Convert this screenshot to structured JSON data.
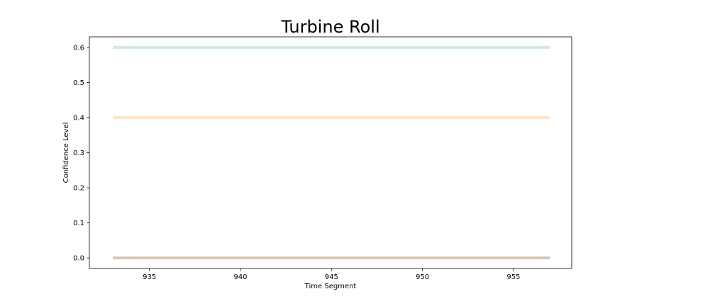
{
  "chart_data": {
    "type": "line",
    "title": "Turbine Roll",
    "xlabel": "Time Segment",
    "ylabel": "Confidence Level",
    "xlim": [
      931.7,
      958.2
    ],
    "ylim": [
      -0.03,
      0.63
    ],
    "xticks": [
      935,
      940,
      945,
      950,
      955
    ],
    "yticks": [
      0.0,
      0.1,
      0.2,
      0.3,
      0.4,
      0.5,
      0.6
    ],
    "ytick_labels": [
      "0.0",
      "0.1",
      "0.2",
      "0.3",
      "0.4",
      "0.5",
      "0.6"
    ],
    "grid": false,
    "series": [
      {
        "x": [
          933,
          957
        ],
        "values": [
          0.6,
          0.6
        ],
        "color": "#d3e4ea"
      },
      {
        "x": [
          933,
          957
        ],
        "values": [
          0.4,
          0.4
        ],
        "color": "#fbe6d2"
      },
      {
        "x": [
          933,
          957
        ],
        "values": [
          0.0,
          0.0
        ],
        "color": "#d6c8b8"
      }
    ]
  }
}
